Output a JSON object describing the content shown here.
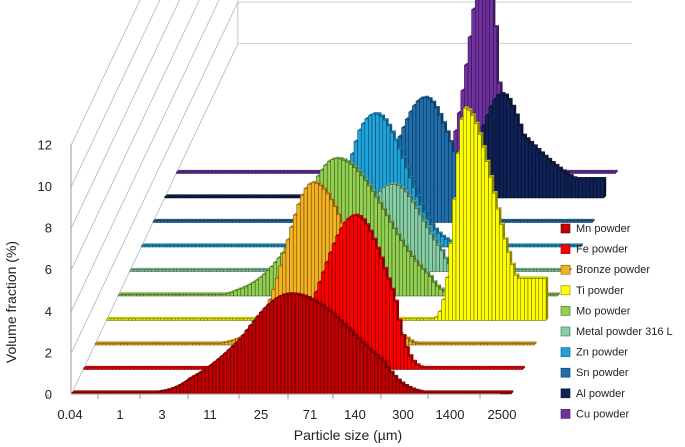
{
  "chart_data": {
    "type": "bar",
    "subtype": "3d-stacked-distribution",
    "title": "",
    "xlabel": "Particle size (µm)",
    "ylabel": "Volume fraction (%)",
    "ylim": [
      0,
      12
    ],
    "x_scale": "log",
    "xtick_labels": [
      "0.04",
      "1",
      "3",
      "11",
      "25",
      "71",
      "140",
      "300",
      "1400",
      "2500"
    ],
    "yticks": [
      0,
      2,
      4,
      6,
      8,
      10,
      12
    ],
    "grid": true,
    "legend_position": "right",
    "series": [
      {
        "name": "Mn powder",
        "color": "#c00000",
        "peak_x": 71,
        "peak_value": 4.8,
        "spread_decades": 0.42
      },
      {
        "name": "Fe powder",
        "color": "#ff0000",
        "peak_x": 160,
        "peak_value": 7.4,
        "spread_decades": 0.22
      },
      {
        "name": "Bronze powder",
        "color": "#f5b220",
        "peak_x": 71,
        "peak_value": 7.8,
        "spread_decades": 0.25
      },
      {
        "name": "Ti powder",
        "color": "#ffff00",
        "peak_x": 1400,
        "peak_value": 10.2,
        "spread_decades": 0.14
      },
      {
        "name": "Mo powder",
        "color": "#92d050",
        "peak_x": 71,
        "peak_value": 6.6,
        "spread_decades": 0.32
      },
      {
        "name": "Metal powder 316 L",
        "color": "#86cfa6",
        "peak_x": 140,
        "peak_value": 4.2,
        "spread_decades": 0.2
      },
      {
        "name": "Zn powder",
        "color": "#1fa3dd",
        "peak_x": 90,
        "peak_value": 6.4,
        "spread_decades": 0.2
      },
      {
        "name": "Sn powder",
        "color": "#1f6fae",
        "peak_x": 160,
        "peak_value": 6.0,
        "spread_decades": 0.19
      },
      {
        "name": "Al powder",
        "color": "#0f2156",
        "peak_x": 700,
        "peak_value": 5.0,
        "spread_decades": 0.3
      },
      {
        "name": "Cu powder",
        "color": "#7030a0",
        "peak_x": 300,
        "peak_value": 10.8,
        "spread_decades": 0.12
      }
    ]
  }
}
